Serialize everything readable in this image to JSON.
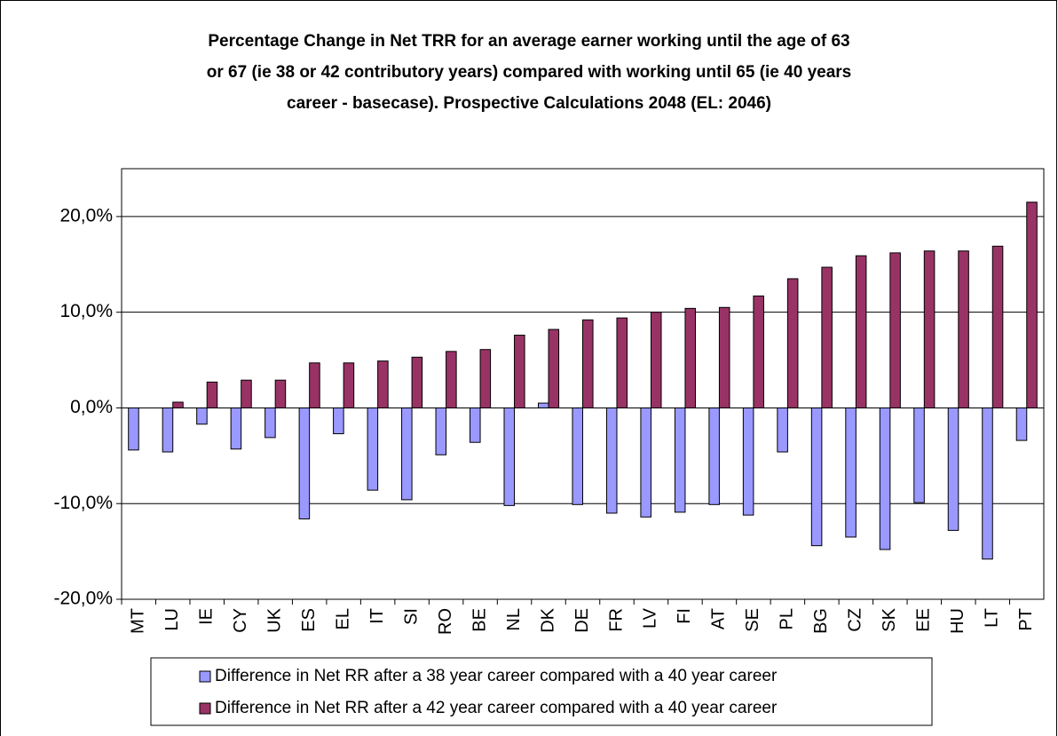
{
  "chart_data": {
    "type": "bar",
    "title": [
      "Percentage Change in Net TRR for an average earner working until the age of 63",
      "or 67 (ie 38 or 42 contributory years) compared with working until 65 (ie 40 years",
      "career - basecase). Prospective Calculations 2048 (EL: 2046)"
    ],
    "categories": [
      "MT",
      "LU",
      "IE",
      "CY",
      "UK",
      "ES",
      "EL",
      "IT",
      "SI",
      "RO",
      "BE",
      "NL",
      "DK",
      "DE",
      "FR",
      "LV",
      "FI",
      "AT",
      "SE",
      "PL",
      "BG",
      "CZ",
      "SK",
      "EE",
      "HU",
      "LT",
      "PT"
    ],
    "series": [
      {
        "name": "Difference in Net RR after a 38 year career compared with a 40 year career",
        "color": "#9999ff",
        "values": [
          -4.4,
          -4.6,
          -1.7,
          -4.3,
          -3.1,
          -11.6,
          -2.7,
          -8.6,
          -9.6,
          -4.9,
          -3.6,
          -10.2,
          0.5,
          -10.1,
          -11.0,
          -11.4,
          -10.9,
          -10.1,
          -11.2,
          -4.6,
          -14.4,
          -13.5,
          -14.8,
          -9.9,
          -12.8,
          -15.8,
          -3.4
        ]
      },
      {
        "name": "Difference in Net RR after a 42 year career compared with a 40 year career",
        "color": "#993366",
        "values": [
          0,
          0.6,
          2.7,
          2.9,
          2.9,
          4.7,
          4.7,
          4.9,
          5.3,
          5.9,
          6.1,
          7.6,
          8.2,
          9.2,
          9.4,
          10.0,
          10.4,
          10.5,
          11.7,
          13.5,
          14.7,
          15.9,
          16.2,
          16.4,
          16.4,
          16.9,
          21.5
        ]
      }
    ],
    "ylim": [
      -20,
      25
    ],
    "yticks": [
      {
        "value": -20,
        "label": "-20,0%"
      },
      {
        "value": -10,
        "label": "-10,0%"
      },
      {
        "value": 0,
        "label": "0,0%"
      },
      {
        "value": 10,
        "label": "10,0%"
      },
      {
        "value": 20,
        "label": "20,0%"
      }
    ],
    "grid": true
  }
}
